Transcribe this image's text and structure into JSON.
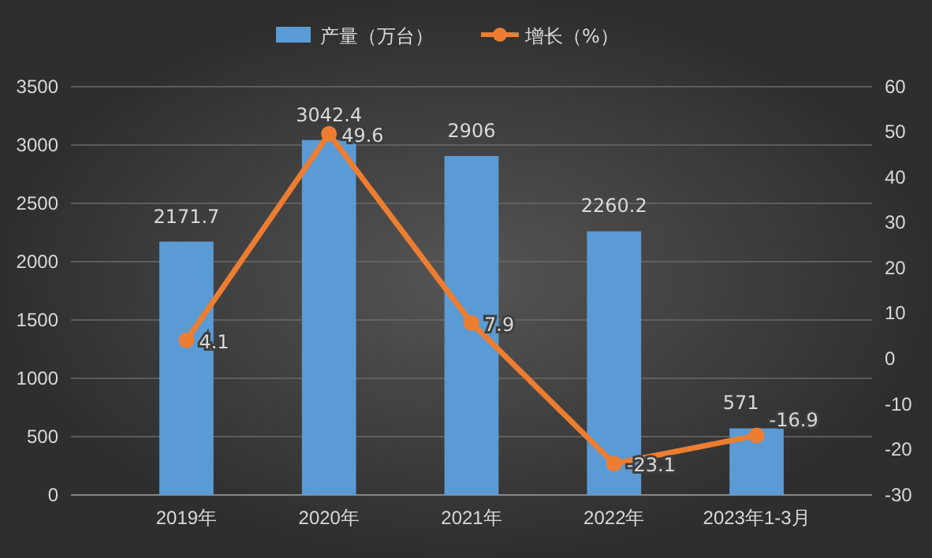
{
  "chart_data": {
    "type": "bar",
    "categories": [
      "2019年",
      "2020年",
      "2021年",
      "2022年",
      "2023年1-3月"
    ],
    "series": [
      {
        "name": "产量（万台）",
        "color": "#5b9bd5",
        "values": [
          2171.7,
          3042.4,
          2906,
          2260.2,
          571
        ]
      },
      {
        "name": "增长（%）",
        "type": "line",
        "axis": "y2",
        "color": "#ed7d31",
        "values": [
          4.1,
          49.6,
          7.9,
          -23.1,
          -16.9
        ]
      }
    ],
    "ylim": [
      0,
      3500
    ],
    "yticks": [
      0,
      500,
      1000,
      1500,
      2000,
      2500,
      3000,
      3500
    ],
    "y2lim": [
      -30,
      60
    ],
    "y2ticks": [
      -30,
      -20,
      -10,
      0,
      10,
      20,
      30,
      40,
      50,
      60
    ],
    "grid": "y",
    "legend": "top",
    "marker": "circle",
    "data_labels": true
  }
}
